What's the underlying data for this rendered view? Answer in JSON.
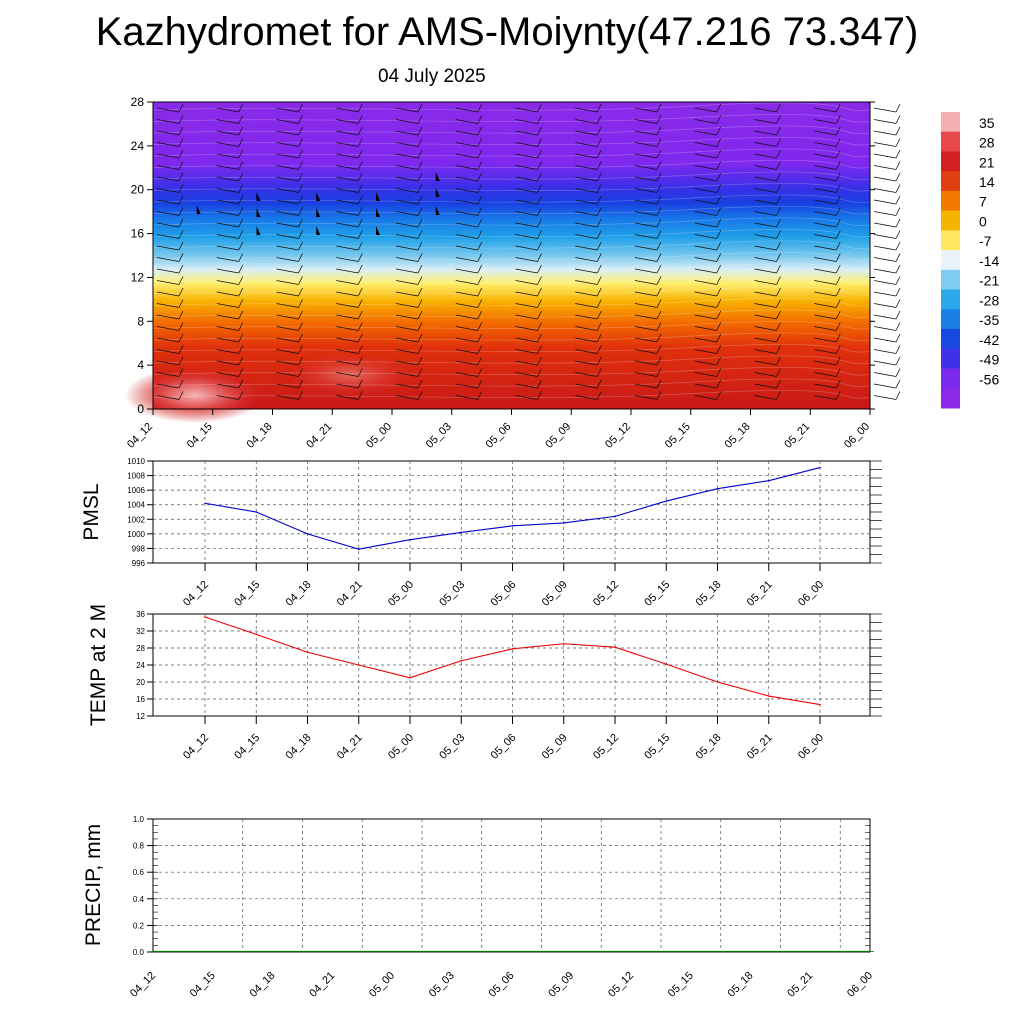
{
  "title": "Kazhydromet for AMS-Moiynty(47.216 73.347)",
  "subtitle": "04 July 2025",
  "time_labels": [
    "04_12",
    "04_15",
    "04_18",
    "04_21",
    "05_00",
    "05_03",
    "05_06",
    "05_09",
    "05_12",
    "05_15",
    "05_18",
    "05_21",
    "06_00"
  ],
  "chart_data": [
    {
      "type": "heatmap",
      "name": "cross-section",
      "xlabel": "",
      "ylabel": "",
      "categories": [
        "04_12",
        "04_15",
        "04_18",
        "04_21",
        "05_00",
        "05_03",
        "05_06",
        "05_09",
        "05_12",
        "05_15",
        "05_18",
        "05_21",
        "06_00"
      ],
      "ylim": [
        0,
        28
      ],
      "yticks": [
        0,
        4,
        8,
        12,
        16,
        20,
        24,
        28
      ],
      "color_levels": [
        35,
        28,
        21,
        14,
        7,
        0,
        -7,
        -14,
        -21,
        -28,
        -35,
        -42,
        -49,
        -56
      ],
      "colors": {
        "hot": "#f2a8a8",
        "red": "#d42020",
        "orange": "#f5a800",
        "yellow": "#fff060",
        "cyan": "#20a8ec",
        "blue": "#1838e0",
        "violet": "#8a28ee"
      },
      "wind_barbs": true
    },
    {
      "type": "line",
      "name": "PMSL",
      "ylabel": "PMSL",
      "ylim": [
        996,
        1010
      ],
      "yticks": [
        996,
        998,
        1000,
        1002,
        1004,
        1006,
        1008,
        1010
      ],
      "categories": [
        "04_12",
        "04_15",
        "04_18",
        "04_21",
        "05_00",
        "05_03",
        "05_06",
        "05_09",
        "05_12",
        "05_15",
        "05_18",
        "05_21",
        "06_00"
      ],
      "values": [
        1004.2,
        1003.0,
        1000.0,
        997.9,
        999.2,
        1000.2,
        1001.1,
        1001.5,
        1002.4,
        1004.5,
        1006.2,
        1007.3,
        1009.1
      ],
      "color": "#0000cc",
      "grid": true
    },
    {
      "type": "line",
      "name": "TEMP at 2 M",
      "ylabel": "TEMP at 2 M",
      "ylim": [
        12,
        36
      ],
      "yticks": [
        12,
        16,
        20,
        24,
        28,
        32,
        36
      ],
      "categories": [
        "04_12",
        "04_15",
        "04_18",
        "04_21",
        "05_00",
        "05_03",
        "05_06",
        "05_09",
        "05_12",
        "05_15",
        "05_18",
        "05_21",
        "06_00"
      ],
      "values": [
        35.3,
        31.2,
        27.0,
        24.0,
        21.0,
        25.0,
        27.8,
        29.0,
        28.2,
        24.2,
        20.0,
        16.7,
        14.7
      ],
      "color": "#ee0000",
      "grid": true
    },
    {
      "type": "bar",
      "name": "PRECIP",
      "ylabel": "PRECIP, mm",
      "ylim": [
        0,
        1
      ],
      "yticks": [
        "0.0",
        "0.2",
        "0.4",
        "0.6",
        "0.8",
        "1.0"
      ],
      "categories": [
        "04_12",
        "04_15",
        "04_18",
        "04_21",
        "05_00",
        "05_03",
        "05_06",
        "05_09",
        "05_12",
        "05_15",
        "05_18",
        "05_21",
        "06_00"
      ],
      "values": [
        0,
        0,
        0,
        0,
        0,
        0,
        0,
        0,
        0,
        0,
        0,
        0,
        0
      ],
      "color": "#007700",
      "grid": true
    }
  ]
}
